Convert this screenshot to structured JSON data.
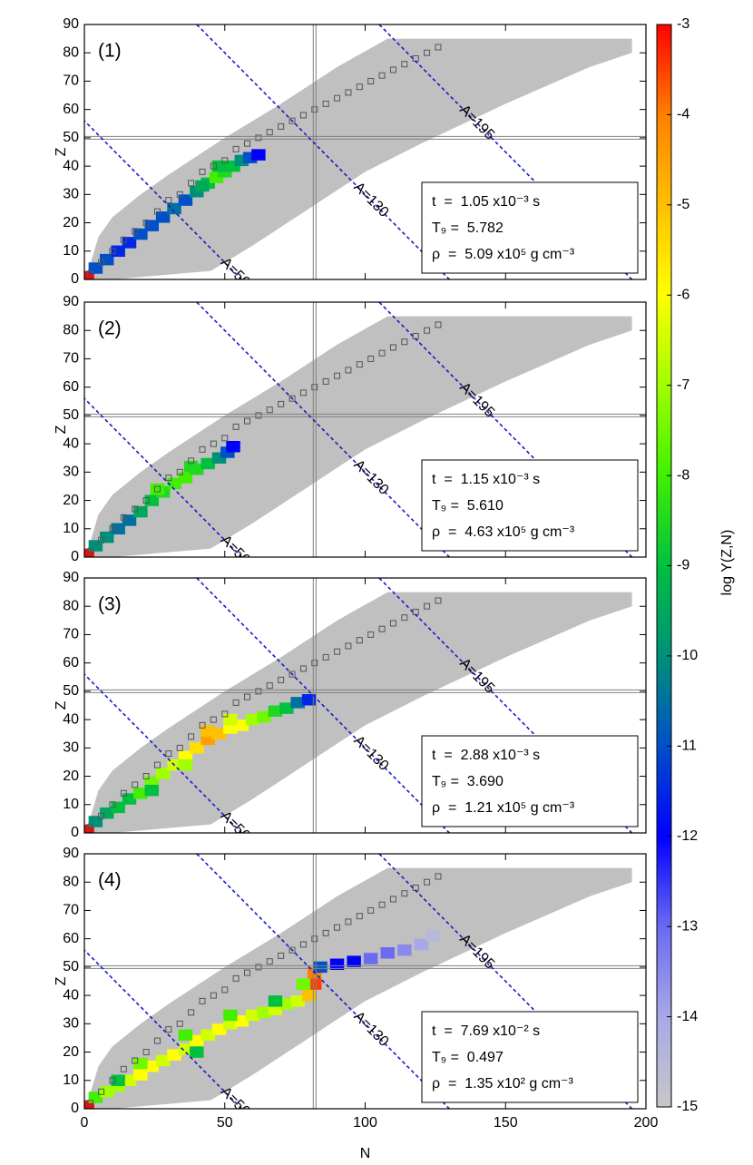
{
  "chart_data": {
    "type": "heatmap",
    "xlabel": "N",
    "ylabel": "Z",
    "xlim": [
      0,
      200
    ],
    "xticks": [
      0,
      50,
      100,
      150,
      200
    ],
    "ylim": [
      0,
      90
    ],
    "yticks": [
      0,
      10,
      20,
      30,
      40,
      50,
      60,
      70,
      80,
      90
    ],
    "colorbar": {
      "label": "log Y(Z,N)",
      "lim": [
        -15,
        -3
      ],
      "ticks": [
        -3,
        -4,
        -5,
        -6,
        -7,
        -8,
        -9,
        -10,
        -11,
        -12,
        -13,
        -14,
        -15
      ],
      "colormap": [
        "#c8c8c8",
        "#a8a8e8",
        "#6a6af2",
        "#0000ff",
        "#0050c8",
        "#009078",
        "#00c040",
        "#40f000",
        "#a0ff00",
        "#ffff00",
        "#ffc000",
        "#ff8000",
        "#ff0000"
      ]
    },
    "network": {
      "color": "#c0c0c0",
      "N": [
        0,
        2,
        5,
        10,
        20,
        30,
        50,
        70,
        90,
        108,
        195,
        195,
        180,
        150,
        120,
        100,
        80,
        60,
        45,
        10
      ],
      "Z": [
        0,
        5,
        15,
        22,
        30,
        37,
        50,
        62,
        75,
        85,
        85,
        80,
        75,
        62,
        48,
        38,
        25,
        12,
        3,
        0
      ]
    },
    "stable": {
      "color": "#555555",
      "N": [
        2,
        6,
        10,
        14,
        18,
        22,
        26,
        30,
        34,
        38,
        42,
        46,
        50,
        54,
        58,
        62,
        66,
        70,
        74,
        78,
        82,
        86,
        90,
        94,
        98,
        102,
        106,
        110,
        114,
        118,
        122,
        126
      ],
      "Z": [
        2,
        6,
        10,
        14,
        17,
        20,
        24,
        28,
        30,
        34,
        38,
        40,
        42,
        46,
        48,
        50,
        52,
        54,
        56,
        58,
        60,
        62,
        64,
        66,
        68,
        70,
        72,
        74,
        76,
        78,
        80,
        82
      ]
    },
    "isobars": [
      {
        "label": "A=56",
        "value": 56
      },
      {
        "label": "A=130",
        "value": 130
      },
      {
        "label": "A=195",
        "value": 195
      }
    ],
    "isobar_color": "#1a1acc",
    "magic_Z": 50,
    "magic_N": 82,
    "magic_color": "#808080",
    "panels": [
      {
        "label": "(1)",
        "info": [
          "t  =  1.05 x10⁻³ s",
          "T₉ =  5.782",
          "ρ  =  5.09 x10⁵ g cm⁻³"
        ],
        "N": [
          1,
          4,
          8,
          12,
          16,
          20,
          24,
          28,
          32,
          36,
          40,
          44,
          47,
          50,
          53,
          56,
          59,
          62,
          48,
          42
        ],
        "Z": [
          1,
          4,
          7,
          10,
          13,
          16,
          19,
          22,
          25,
          28,
          31,
          34,
          36,
          38,
          40,
          42,
          43,
          44,
          40,
          33
        ],
        "values": [
          -3,
          -11,
          -11,
          -11.5,
          -11.5,
          -11,
          -11,
          -11,
          -10.5,
          -11,
          -10,
          -9,
          -8,
          -8.5,
          -9,
          -10,
          -11,
          -12,
          -9,
          -9.5
        ]
      },
      {
        "label": "(2)",
        "info": [
          "t  =  1.15 x10⁻³ s",
          "T₉ =  5.610",
          "ρ  =  4.63 x10⁵ g cm⁻³"
        ],
        "N": [
          1,
          4,
          8,
          12,
          16,
          20,
          24,
          28,
          32,
          36,
          40,
          44,
          48,
          51,
          53,
          26,
          38
        ],
        "Z": [
          1,
          4,
          7,
          10,
          13,
          16,
          20,
          23,
          26,
          28,
          31,
          33,
          35,
          37,
          39,
          24,
          32
        ],
        "values": [
          -3,
          -10,
          -10,
          -10.5,
          -10.5,
          -9.5,
          -9,
          -8.5,
          -8,
          -8,
          -8.5,
          -9,
          -10,
          -11,
          -12,
          -8,
          -8.5
        ]
      },
      {
        "label": "(3)",
        "info": [
          "t  =  2.88 x10⁻³ s",
          "T₉ =  3.690",
          "ρ  =  1.21 x10⁵ g cm⁻³"
        ],
        "N": [
          1,
          4,
          8,
          12,
          16,
          20,
          24,
          28,
          32,
          36,
          40,
          44,
          48,
          52,
          56,
          60,
          64,
          68,
          72,
          76,
          80,
          44,
          52,
          36,
          24
        ],
        "Z": [
          1,
          4,
          7,
          9,
          12,
          14,
          18,
          21,
          24,
          27,
          30,
          33,
          35,
          37,
          38,
          40,
          41,
          43,
          44,
          46,
          47,
          36,
          40,
          24,
          15
        ],
        "values": [
          -3,
          -10,
          -9.5,
          -9,
          -9,
          -8,
          -7.5,
          -7,
          -6.5,
          -6,
          -5.5,
          -4.5,
          -5,
          -6,
          -6,
          -7,
          -7.5,
          -8.5,
          -9,
          -10.5,
          -11.5,
          -5,
          -6.5,
          -7,
          -9
        ]
      },
      {
        "label": "(4)",
        "info": [
          "t  =  7.69 x10⁻² s",
          "T₉ =  0.497",
          "ρ  =  1.35 x10² g cm⁻³"
        ],
        "N": [
          1,
          4,
          8,
          12,
          16,
          20,
          24,
          28,
          32,
          36,
          40,
          44,
          48,
          52,
          56,
          60,
          64,
          68,
          72,
          76,
          80,
          82,
          82,
          20,
          36,
          52,
          68,
          40,
          84,
          90,
          96,
          102,
          108,
          114,
          120,
          124,
          78,
          12
        ],
        "Z": [
          1,
          4,
          6,
          8,
          10,
          12,
          15,
          17,
          19,
          21,
          24,
          26,
          28,
          30,
          31,
          33,
          34,
          35,
          37,
          38,
          40,
          44,
          48,
          16,
          26,
          33,
          38,
          20,
          50,
          51,
          52,
          53,
          55,
          56,
          58,
          61,
          44,
          10
        ],
        "values": [
          -3,
          -8,
          -7,
          -7,
          -6.5,
          -6,
          -6,
          -6.5,
          -6,
          -6.5,
          -6,
          -6.5,
          -6,
          -6.5,
          -6,
          -6.5,
          -7,
          -6.5,
          -7,
          -6.5,
          -5,
          -3.5,
          -4,
          -7.5,
          -8,
          -8,
          -9,
          -9,
          -11,
          -12,
          -12,
          -13,
          -13,
          -13.5,
          -14,
          -14.5,
          -7.5,
          -9
        ]
      }
    ]
  }
}
